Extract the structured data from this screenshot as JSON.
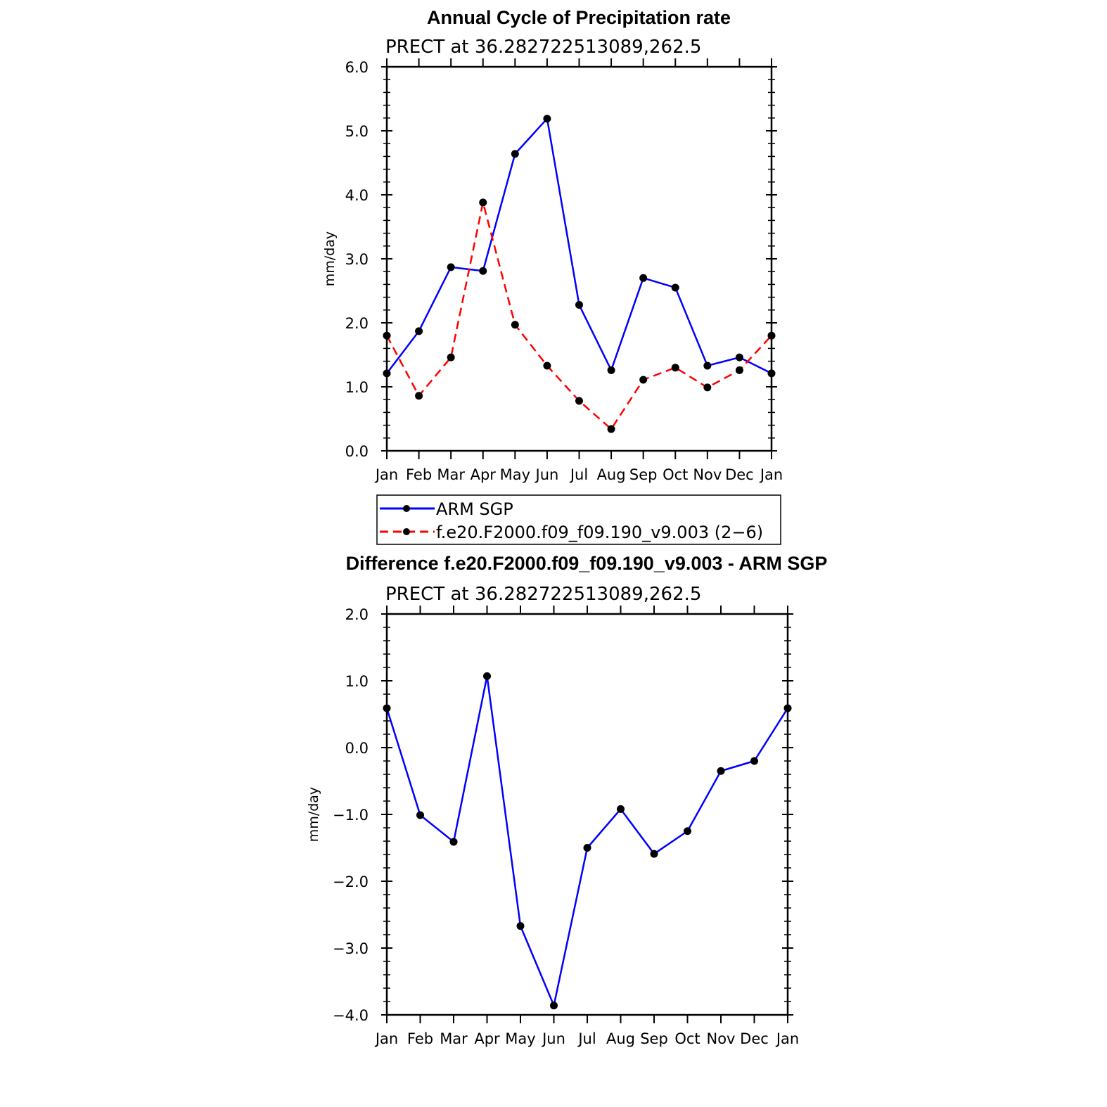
{
  "chart_data": [
    {
      "type": "line",
      "title": "Annual Cycle of Precipitation rate",
      "subtitle": "PRECT at 36.282722513089,262.5",
      "ylabel": "mm/day",
      "xlabel": "",
      "ylim": [
        0,
        6
      ],
      "y_ticks": [
        "0.0",
        "1.0",
        "2.0",
        "3.0",
        "4.0",
        "5.0",
        "6.0"
      ],
      "categories": [
        "Jan",
        "Feb",
        "Mar",
        "Apr",
        "May",
        "Jun",
        "Jul",
        "Aug",
        "Sep",
        "Oct",
        "Nov",
        "Dec",
        "Jan"
      ],
      "grid": false,
      "legend_position": "bottom",
      "series": [
        {
          "name": "ARM SGP",
          "color": "#0000ff",
          "dash": "solid",
          "values": [
            1.21,
            1.87,
            2.87,
            2.81,
            4.64,
            5.19,
            2.28,
            1.26,
            2.7,
            2.55,
            1.33,
            1.46,
            1.21
          ]
        },
        {
          "name": "f.e20.F2000.f09_f09.190_v9.003 (2−6)",
          "color": "#ff0000",
          "dash": "dashed",
          "values": [
            1.8,
            0.86,
            1.46,
            3.88,
            1.97,
            1.33,
            0.78,
            0.34,
            1.11,
            1.3,
            0.99,
            1.26,
            1.8
          ]
        }
      ]
    },
    {
      "type": "line",
      "title": "Difference f.e20.F2000.f09_f09.190_v9.003 - ARM SGP",
      "subtitle": "PRECT at 36.282722513089,262.5",
      "ylabel": "mm/day",
      "xlabel": "",
      "ylim": [
        -4,
        2
      ],
      "y_ticks": [
        "−4.0",
        "−3.0",
        "−2.0",
        "−1.0",
        "0.0",
        "1.0",
        "2.0"
      ],
      "categories": [
        "Jan",
        "Feb",
        "Mar",
        "Apr",
        "May",
        "Jun",
        "Jul",
        "Aug",
        "Sep",
        "Oct",
        "Nov",
        "Dec",
        "Jan"
      ],
      "grid": false,
      "series": [
        {
          "color": "#0000ff",
          "dash": "solid",
          "values": [
            0.59,
            -1.01,
            -1.41,
            1.07,
            -2.67,
            -3.86,
            -1.5,
            -0.92,
            -1.59,
            -1.25,
            -0.35,
            -0.2,
            0.59
          ]
        }
      ]
    }
  ]
}
